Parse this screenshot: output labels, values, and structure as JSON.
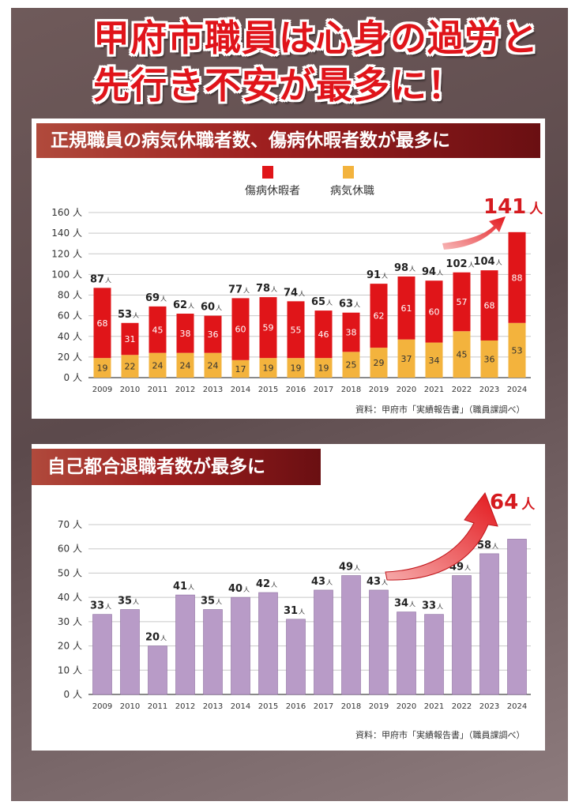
{
  "headline": {
    "line1": "甲府市職員は心身の過労と",
    "line2": "先行き不安が最多に！"
  },
  "colors": {
    "injury": "#e01519",
    "illness": "#f3b33d",
    "resign": "#b89bc7",
    "accent": "#d51a1f"
  },
  "chart_data": [
    {
      "type": "bar",
      "stacked": true,
      "title": "正規職員の病気休職者数、傷病休暇者数が最多に",
      "categories": [
        "2009",
        "2010",
        "2011",
        "2012",
        "2013",
        "2014",
        "2015",
        "2016",
        "2017",
        "2018",
        "2019",
        "2020",
        "2021",
        "2022",
        "2023",
        "2024"
      ],
      "series": [
        {
          "name": "病気休職",
          "values": [
            19,
            22,
            24,
            24,
            24,
            17,
            19,
            19,
            19,
            25,
            29,
            37,
            34,
            45,
            36,
            53
          ]
        },
        {
          "name": "傷病休暇者",
          "values": [
            68,
            31,
            45,
            38,
            36,
            60,
            59,
            55,
            46,
            38,
            62,
            61,
            60,
            57,
            68,
            88
          ]
        }
      ],
      "totals": [
        87,
        53,
        69,
        62,
        60,
        77,
        78,
        74,
        65,
        63,
        91,
        98,
        94,
        102,
        104,
        141
      ],
      "yticks": [
        "0 人",
        "20 人",
        "40 人",
        "60 人",
        "80 人",
        "100 人",
        "120 人",
        "140 人",
        "160 人"
      ],
      "ylim": [
        0,
        160
      ],
      "unit": "人",
      "highlight": {
        "value": "141",
        "unit": "人"
      },
      "legend_position": "top",
      "grid": true,
      "source": "資料：甲府市「実績報告書」（職員課調べ）"
    },
    {
      "type": "bar",
      "title": "自己都合退職者数が最多に",
      "categories": [
        "2009",
        "2010",
        "2011",
        "2012",
        "2013",
        "2014",
        "2015",
        "2016",
        "2017",
        "2018",
        "2019",
        "2020",
        "2021",
        "2022",
        "2023",
        "2024"
      ],
      "values": [
        33,
        35,
        20,
        41,
        35,
        40,
        42,
        31,
        43,
        49,
        43,
        34,
        33,
        49,
        58,
        64
      ],
      "yticks": [
        "0 人",
        "10 人",
        "20 人",
        "30 人",
        "40 人",
        "50 人",
        "60 人",
        "70 人"
      ],
      "ylim": [
        0,
        70
      ],
      "unit": "人",
      "highlight": {
        "value": "64",
        "unit": "人"
      },
      "grid": true,
      "source": "資料：甲府市「実績報告書」（職員課調べ）"
    }
  ]
}
